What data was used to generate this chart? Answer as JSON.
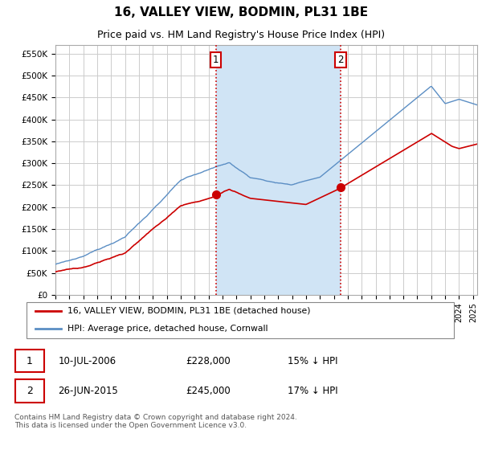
{
  "title": "16, VALLEY VIEW, BODMIN, PL31 1BE",
  "subtitle": "Price paid vs. HM Land Registry's House Price Index (HPI)",
  "ylabel_ticks": [
    "£0",
    "£50K",
    "£100K",
    "£150K",
    "£200K",
    "£250K",
    "£300K",
    "£350K",
    "£400K",
    "£450K",
    "£500K",
    "£550K"
  ],
  "ytick_values": [
    0,
    50000,
    100000,
    150000,
    200000,
    250000,
    300000,
    350000,
    400000,
    450000,
    500000,
    550000
  ],
  "ylim": [
    0,
    570000
  ],
  "xlim_start": 1995.0,
  "xlim_end": 2025.3,
  "transaction1": {
    "date": 2006.53,
    "price": 228000,
    "label": "1",
    "year_str": "10-JUL-2006",
    "price_str": "£228,000",
    "pct": "15% ↓ HPI"
  },
  "transaction2": {
    "date": 2015.48,
    "price": 245000,
    "label": "2",
    "year_str": "26-JUN-2015",
    "price_str": "£245,000",
    "pct": "17% ↓ HPI"
  },
  "legend_entry1": "16, VALLEY VIEW, BODMIN, PL31 1BE (detached house)",
  "legend_entry2": "HPI: Average price, detached house, Cornwall",
  "footnote": "Contains HM Land Registry data © Crown copyright and database right 2024.\nThis data is licensed under the Open Government Licence v3.0.",
  "hpi_color": "#5b8ec4",
  "price_color": "#cc0000",
  "vline_color": "#cc0000",
  "dot_color": "#cc0000",
  "shaded_color": "#d0e4f5",
  "plot_bg_color": "#ffffff",
  "grid_color": "#cccccc",
  "title_fontsize": 11,
  "subtitle_fontsize": 9,
  "axis_fontsize": 8
}
